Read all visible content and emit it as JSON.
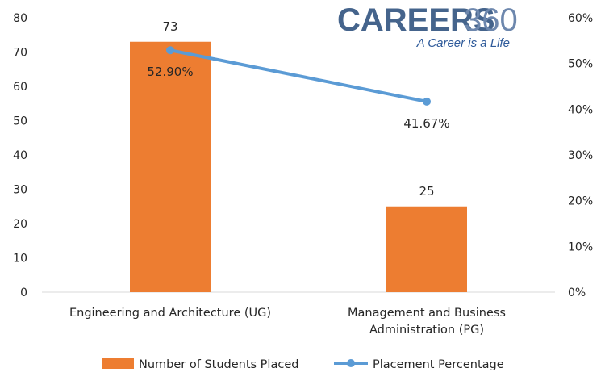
{
  "logo": {
    "main": "CAREERS",
    "number": "360",
    "tagline": "A Career is a Life"
  },
  "chart_data": {
    "type": "bar",
    "categories": [
      [
        "Engineering and Architecture (UG)"
      ],
      [
        "Management and Business",
        "Administration (PG)"
      ]
    ],
    "series": [
      {
        "name": "Number of Students Placed",
        "type": "bar",
        "axis": "left",
        "values": [
          73,
          25
        ],
        "labels": [
          "73",
          "25"
        ],
        "color": "#ed7d31"
      },
      {
        "name": "Placement Percentage",
        "type": "line",
        "axis": "right",
        "values": [
          52.9,
          41.67
        ],
        "labels": [
          "52.90%",
          "41.67%"
        ],
        "color": "#5b9bd5"
      }
    ],
    "ylim_left": [
      0,
      80
    ],
    "yticks_left": [
      "0",
      "10",
      "20",
      "30",
      "40",
      "50",
      "60",
      "70",
      "80"
    ],
    "ylim_right": [
      0,
      60
    ],
    "yticks_right": [
      "0%",
      "10%",
      "20%",
      "30%",
      "40%",
      "50%",
      "60%"
    ],
    "grid": false,
    "legend_position": "bottom"
  }
}
